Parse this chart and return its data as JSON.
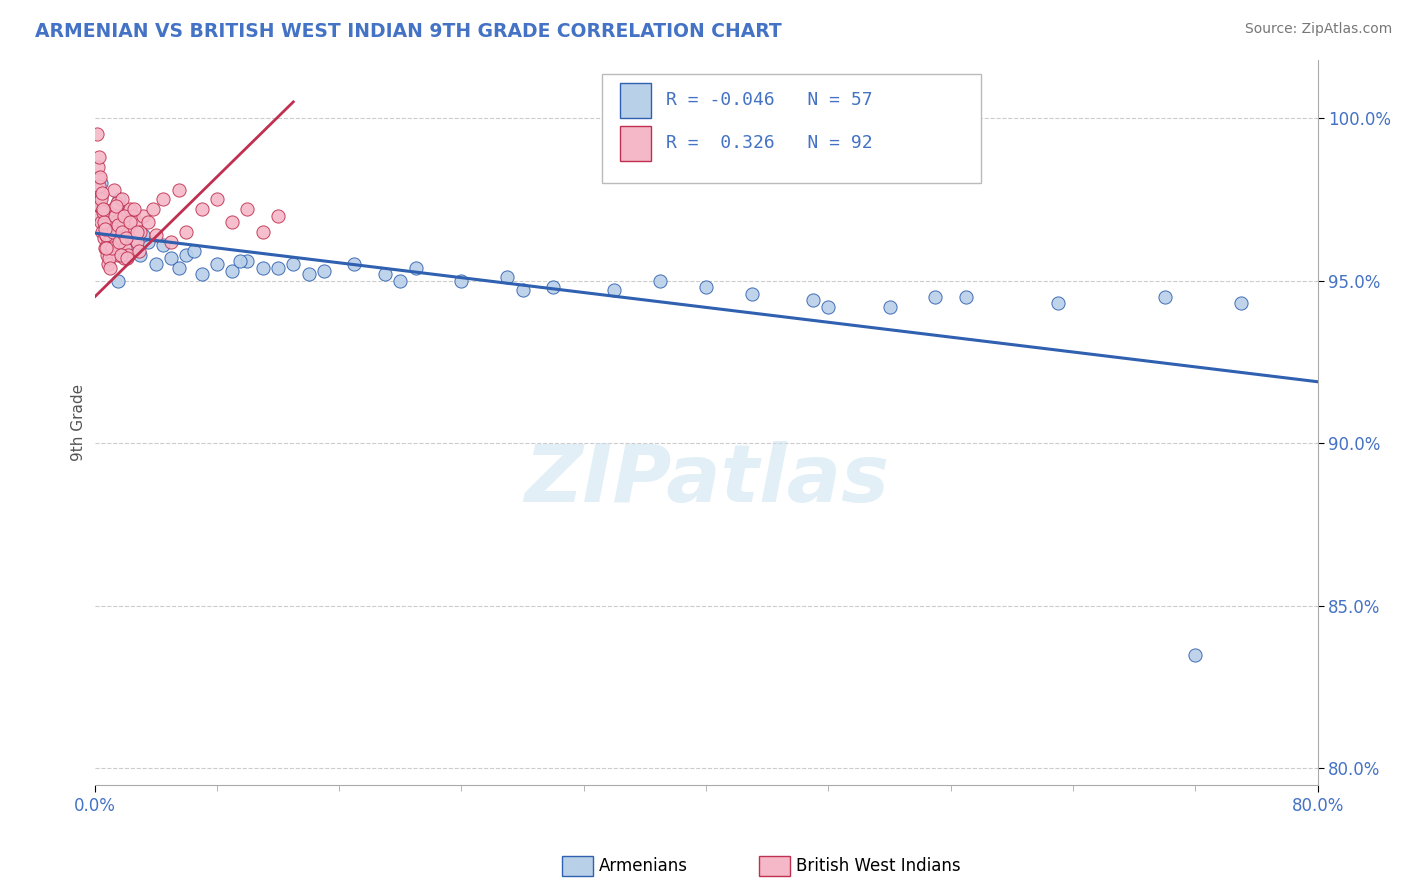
{
  "title": "ARMENIAN VS BRITISH WEST INDIAN 9TH GRADE CORRELATION CHART",
  "source": "Source: ZipAtlas.com",
  "ylabel": "9th Grade",
  "xlim": [
    0.0,
    80.0
  ],
  "ylim": [
    79.5,
    101.8
  ],
  "ytick_values": [
    80.0,
    85.0,
    90.0,
    95.0,
    100.0
  ],
  "blue_R": -0.046,
  "blue_N": 57,
  "pink_R": 0.326,
  "pink_N": 92,
  "blue_color": "#b8d0e8",
  "pink_color": "#f5b8c8",
  "trend_blue_color": "#3060b0",
  "trend_pink_color": "#c03050",
  "watermark": "ZIPatlas",
  "blue_scatter_x": [
    0.5,
    0.8,
    1.0,
    1.2,
    1.4,
    1.6,
    1.8,
    2.0,
    2.2,
    2.5,
    3.0,
    3.5,
    4.0,
    5.0,
    5.5,
    6.0,
    7.0,
    8.0,
    9.0,
    10.0,
    11.0,
    13.0,
    14.0,
    15.0,
    17.0,
    19.0,
    21.0,
    24.0,
    27.0,
    30.0,
    34.0,
    37.0,
    40.0,
    43.0,
    47.0,
    52.0,
    57.0,
    63.0,
    70.0,
    75.0,
    0.6,
    1.1,
    1.7,
    2.3,
    3.2,
    4.5,
    6.5,
    9.5,
    12.0,
    20.0,
    28.0,
    48.0,
    55.0,
    72.0,
    0.4,
    0.9,
    1.5
  ],
  "blue_scatter_y": [
    97.2,
    96.8,
    97.0,
    96.5,
    96.2,
    97.5,
    96.8,
    96.0,
    97.1,
    96.3,
    95.8,
    96.2,
    95.5,
    95.7,
    95.4,
    95.8,
    95.2,
    95.5,
    95.3,
    95.6,
    95.4,
    95.5,
    95.2,
    95.3,
    95.5,
    95.2,
    95.4,
    95.0,
    95.1,
    94.8,
    94.7,
    95.0,
    94.8,
    94.6,
    94.4,
    94.2,
    94.5,
    94.3,
    94.5,
    94.3,
    96.5,
    96.7,
    97.0,
    96.8,
    96.4,
    96.1,
    95.9,
    95.6,
    95.4,
    95.0,
    94.7,
    94.2,
    94.5,
    83.5,
    98.0,
    96.0,
    95.0
  ],
  "pink_scatter_x": [
    0.15,
    0.2,
    0.25,
    0.3,
    0.35,
    0.4,
    0.45,
    0.5,
    0.55,
    0.6,
    0.65,
    0.7,
    0.75,
    0.8,
    0.85,
    0.9,
    0.95,
    1.0,
    1.05,
    1.1,
    1.15,
    1.2,
    1.25,
    1.3,
    1.35,
    1.4,
    1.45,
    1.5,
    1.55,
    1.6,
    1.65,
    1.7,
    1.75,
    1.8,
    1.85,
    1.9,
    1.95,
    2.0,
    2.1,
    2.2,
    2.3,
    2.4,
    2.5,
    2.6,
    2.7,
    2.8,
    2.9,
    3.0,
    3.2,
    3.5,
    3.8,
    4.0,
    4.5,
    5.0,
    5.5,
    6.0,
    7.0,
    8.0,
    9.0,
    10.0,
    11.0,
    12.0,
    0.22,
    0.32,
    0.42,
    0.52,
    0.62,
    0.72,
    0.82,
    0.92,
    1.02,
    1.12,
    1.22,
    1.32,
    1.42,
    1.52,
    1.62,
    1.72,
    1.82,
    1.92,
    2.05,
    2.15,
    2.35,
    2.55,
    2.75,
    0.18,
    0.28,
    0.38,
    0.48,
    0.58,
    0.68,
    0.78
  ],
  "pink_scatter_y": [
    97.8,
    98.2,
    97.5,
    97.0,
    97.3,
    97.6,
    96.8,
    96.5,
    97.2,
    96.3,
    96.7,
    96.0,
    96.4,
    95.8,
    96.2,
    95.5,
    96.0,
    95.9,
    96.3,
    96.7,
    96.0,
    97.2,
    96.5,
    97.8,
    96.2,
    96.8,
    97.4,
    96.1,
    95.8,
    96.5,
    96.0,
    97.0,
    96.3,
    97.5,
    96.8,
    95.7,
    96.4,
    96.0,
    96.5,
    95.8,
    97.2,
    96.5,
    97.0,
    96.3,
    96.8,
    96.2,
    95.9,
    96.5,
    97.0,
    96.8,
    97.2,
    96.4,
    97.5,
    96.2,
    97.8,
    96.5,
    97.2,
    97.5,
    96.8,
    97.2,
    96.5,
    97.0,
    98.5,
    97.9,
    97.5,
    97.1,
    96.8,
    96.4,
    96.0,
    95.7,
    95.4,
    96.0,
    96.5,
    97.0,
    97.3,
    96.7,
    96.2,
    95.8,
    96.5,
    97.0,
    96.3,
    95.7,
    96.8,
    97.2,
    96.5,
    99.5,
    98.8,
    98.2,
    97.7,
    97.2,
    96.6,
    96.0
  ]
}
